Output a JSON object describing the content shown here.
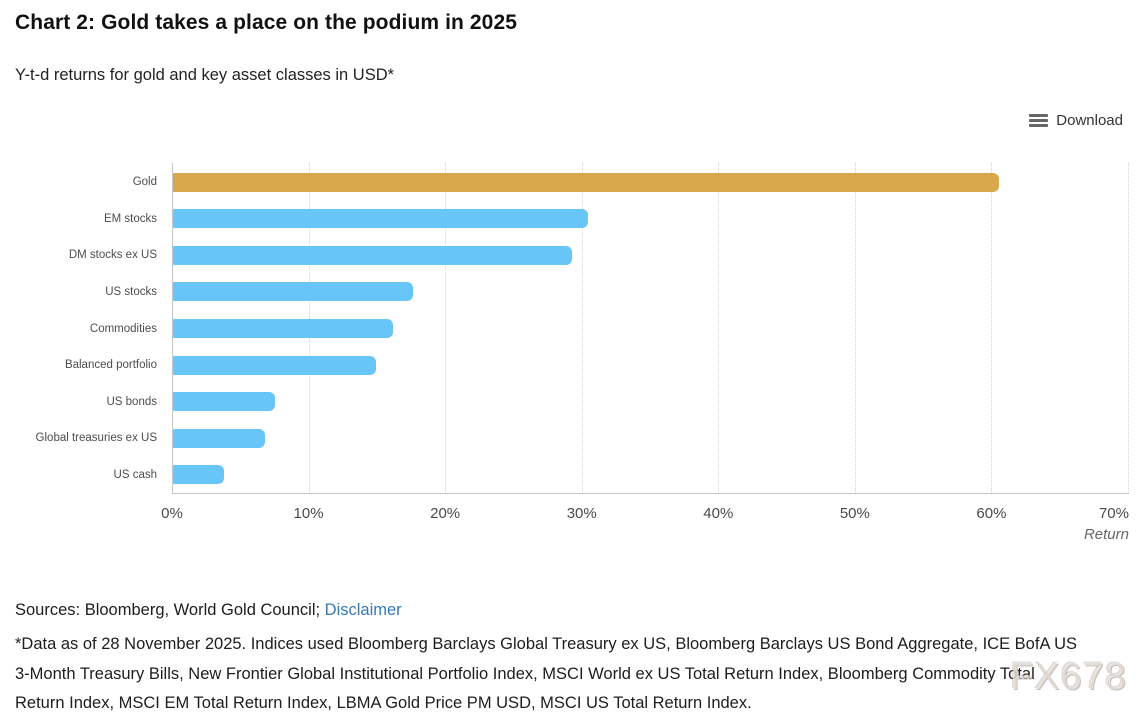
{
  "header": {
    "title": "Chart 2: Gold takes a place on the podium in 2025",
    "subtitle": "Y-t-d returns for gold and key asset classes in USD*"
  },
  "toolbar": {
    "download_label": "Download"
  },
  "chart_data": {
    "type": "bar",
    "orientation": "horizontal",
    "categories": [
      "Gold",
      "EM stocks",
      "DM stocks ex US",
      "US stocks",
      "Commodities",
      "Balanced portfolio",
      "US bonds",
      "Global treasuries ex US",
      "US cash"
    ],
    "values": [
      60.5,
      30.4,
      29.2,
      17.6,
      16.1,
      14.9,
      7.5,
      6.7,
      3.7
    ],
    "colors": [
      "#D7A94C",
      "#68C5F7",
      "#68C5F7",
      "#68C5F7",
      "#68C5F7",
      "#68C5F7",
      "#68C5F7",
      "#68C5F7",
      "#68C5F7"
    ],
    "unit": "%",
    "title": "Chart 2: Gold takes a place on the podium in 2025",
    "subtitle": "Y-t-d returns for gold and key asset classes in USD*",
    "xlabel": "Return",
    "ylabel": "",
    "xlim": [
      0,
      70
    ],
    "x_ticks": [
      "0%",
      "10%",
      "20%",
      "30%",
      "40%",
      "50%",
      "60%",
      "70%"
    ],
    "grid": "vertical-dotted",
    "legend": "none"
  },
  "footer": {
    "sources_prefix": "Sources: Bloomberg, World Gold Council; ",
    "disclaimer_link": "Disclaimer",
    "footnote_lines": [
      "*Data as of 28 November 2025. Indices used Bloomberg Barclays Global Treasury ex US, Bloomberg Barclays US Bond Aggregate, ICE BofA US",
      "3-Month Treasury Bills, New Frontier Global Institutional Portfolio Index, MSCI World ex US Total Return Index, Bloomberg Commodity Total",
      "Return Index, MSCI EM Total Return Index, LBMA Gold Price PM USD, MSCI US Total Return Index."
    ]
  },
  "watermark": "FX678"
}
